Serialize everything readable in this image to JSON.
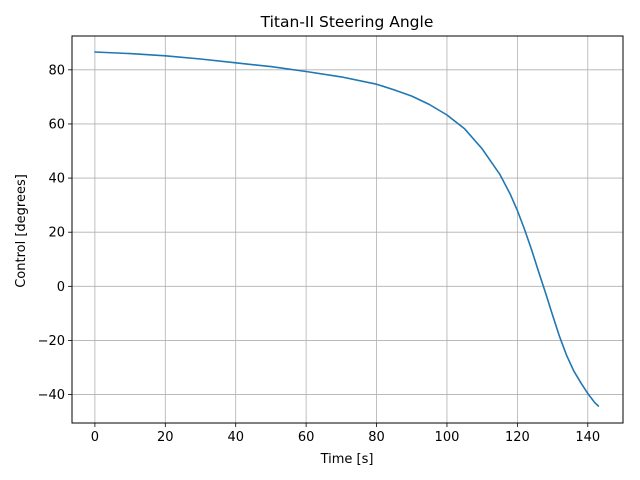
{
  "chart_data": {
    "type": "line",
    "title": "Titan-II Steering Angle",
    "xlabel": "Time [s]",
    "ylabel": "Control [degrees]",
    "xlim": [
      -6.5,
      150
    ],
    "ylim": [
      -50.5,
      92.5
    ],
    "xticks": [
      0,
      20,
      40,
      60,
      80,
      100,
      120,
      140
    ],
    "yticks": [
      -40,
      -20,
      0,
      20,
      40,
      60,
      80
    ],
    "grid": true,
    "series": [
      {
        "color": "#1f77b4",
        "x": [
          0,
          10,
          20,
          30,
          40,
          50,
          60,
          70,
          80,
          85,
          90,
          95,
          100,
          105,
          110,
          115,
          118,
          120,
          122,
          124,
          126,
          128,
          130,
          132,
          134,
          136,
          138,
          140,
          142,
          143
        ],
        "y": [
          86.6,
          86.0,
          85.2,
          84.0,
          82.6,
          81.2,
          79.4,
          77.4,
          74.7,
          72.6,
          70.3,
          67.2,
          63.3,
          58.2,
          50.8,
          41.4,
          34.0,
          28.0,
          21.2,
          13.6,
          5.5,
          -2.4,
          -10.7,
          -18.6,
          -25.6,
          -31.2,
          -35.6,
          -39.6,
          -43.0,
          -44.2
        ]
      }
    ]
  }
}
